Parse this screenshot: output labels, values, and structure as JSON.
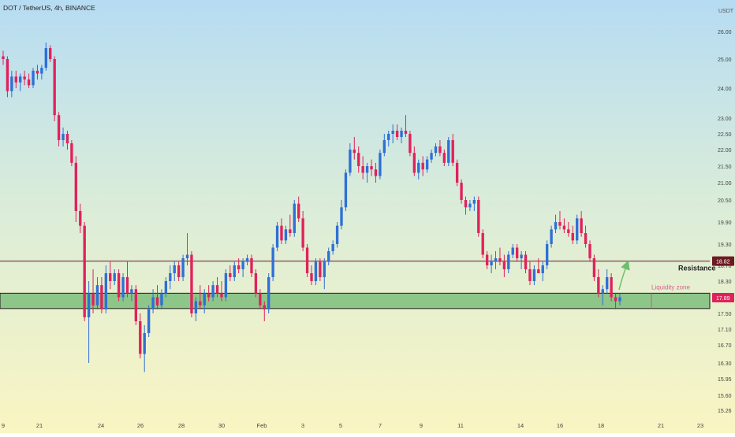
{
  "header": {
    "symbol_line": "DOT / TetherUS, 4h, BINANCE"
  },
  "chart_data": {
    "type": "candlestick",
    "title": "DOT / TetherUS, 4h, BINANCE",
    "y_unit": "USDT",
    "y_ticks": [
      "26.00",
      "25.00",
      "24.00",
      "23.00",
      "22.50",
      "22.00",
      "21.50",
      "21.00",
      "20.50",
      "19.90",
      "19.30",
      "18.70",
      "18.30",
      "17.89",
      "17.50",
      "17.10",
      "16.70",
      "16.30",
      "15.95",
      "15.60",
      "15.26"
    ],
    "x_ticks": [
      "9",
      "21",
      "24",
      "26",
      "28",
      "30",
      "Feb",
      "3",
      "5",
      "7",
      "9",
      "11",
      "14",
      "16",
      "18",
      "21",
      "23"
    ],
    "price_labels": {
      "resistance": "18.82",
      "current": "17.89"
    },
    "annotations": {
      "resistance": "Resistance",
      "liquidity": "Liquidity zone"
    },
    "levels": {
      "resistance": 18.82,
      "zone_top": 18.0,
      "zone_bottom": 17.62
    },
    "candles_ohlc": [
      [
        25.1,
        25.3,
        24.8,
        25.0
      ],
      [
        25.0,
        25.1,
        23.7,
        23.9
      ],
      [
        23.9,
        24.6,
        23.7,
        24.4
      ],
      [
        24.4,
        24.6,
        24.0,
        24.2
      ],
      [
        24.2,
        24.5,
        23.9,
        24.4
      ],
      [
        24.4,
        24.6,
        24.1,
        24.3
      ],
      [
        24.3,
        24.5,
        24.0,
        24.1
      ],
      [
        24.1,
        24.7,
        24.0,
        24.6
      ],
      [
        24.6,
        24.8,
        24.3,
        24.5
      ],
      [
        24.5,
        24.8,
        24.3,
        24.7
      ],
      [
        24.7,
        25.6,
        24.6,
        25.4
      ],
      [
        25.4,
        25.5,
        24.9,
        25.0
      ],
      [
        25.0,
        25.1,
        22.9,
        23.1
      ],
      [
        23.1,
        23.2,
        22.1,
        22.3
      ],
      [
        22.3,
        22.7,
        22.1,
        22.5
      ],
      [
        22.5,
        22.6,
        22.0,
        22.2
      ],
      [
        22.2,
        22.3,
        21.5,
        21.6
      ],
      [
        21.6,
        21.8,
        19.9,
        20.2
      ],
      [
        20.2,
        20.4,
        19.6,
        19.8
      ],
      [
        19.8,
        19.9,
        17.3,
        17.4
      ],
      [
        17.4,
        18.3,
        16.3,
        18.0
      ],
      [
        18.0,
        18.6,
        17.5,
        17.7
      ],
      [
        17.7,
        18.4,
        17.6,
        18.2
      ],
      [
        18.2,
        18.4,
        17.5,
        17.6
      ],
      [
        17.6,
        18.7,
        17.5,
        18.5
      ],
      [
        18.5,
        18.8,
        18.1,
        18.3
      ],
      [
        18.3,
        18.6,
        18.2,
        18.5
      ],
      [
        18.5,
        18.6,
        17.8,
        17.9
      ],
      [
        17.9,
        18.5,
        17.8,
        18.4
      ],
      [
        18.4,
        18.8,
        17.9,
        18.0
      ],
      [
        18.0,
        18.2,
        17.8,
        18.1
      ],
      [
        18.1,
        18.2,
        17.2,
        17.3
      ],
      [
        17.3,
        17.5,
        16.4,
        16.5
      ],
      [
        16.5,
        17.2,
        16.1,
        17.0
      ],
      [
        17.0,
        17.7,
        16.9,
        17.6
      ],
      [
        17.6,
        18.1,
        17.5,
        17.9
      ],
      [
        17.9,
        18.2,
        17.6,
        17.7
      ],
      [
        17.7,
        18.1,
        17.6,
        18.0
      ],
      [
        18.0,
        18.4,
        17.9,
        18.3
      ],
      [
        18.3,
        18.7,
        18.1,
        18.5
      ],
      [
        18.5,
        18.8,
        18.3,
        18.7
      ],
      [
        18.7,
        18.8,
        18.3,
        18.4
      ],
      [
        18.4,
        19.0,
        18.3,
        18.9
      ],
      [
        18.9,
        19.6,
        18.7,
        19.0
      ],
      [
        19.0,
        19.1,
        17.4,
        17.5
      ],
      [
        17.5,
        17.9,
        17.3,
        17.8
      ],
      [
        17.8,
        18.2,
        17.6,
        17.7
      ],
      [
        17.7,
        18.1,
        17.5,
        18.0
      ],
      [
        18.0,
        18.2,
        17.8,
        17.9
      ],
      [
        17.9,
        18.3,
        17.8,
        18.2
      ],
      [
        18.2,
        18.4,
        17.9,
        18.0
      ],
      [
        18.0,
        18.3,
        17.8,
        17.9
      ],
      [
        17.9,
        18.6,
        17.8,
        18.5
      ],
      [
        18.5,
        18.7,
        18.3,
        18.4
      ],
      [
        18.4,
        18.8,
        18.3,
        18.7
      ],
      [
        18.7,
        18.9,
        18.5,
        18.6
      ],
      [
        18.6,
        18.9,
        18.4,
        18.8
      ],
      [
        18.8,
        19.0,
        18.7,
        18.9
      ],
      [
        18.9,
        19.0,
        18.4,
        18.5
      ],
      [
        18.5,
        18.6,
        17.9,
        18.0
      ],
      [
        18.0,
        18.1,
        17.6,
        17.7
      ],
      [
        17.7,
        17.8,
        17.3,
        17.6
      ],
      [
        17.6,
        18.5,
        17.5,
        18.4
      ],
      [
        18.4,
        19.3,
        18.3,
        19.2
      ],
      [
        19.2,
        19.9,
        19.1,
        19.8
      ],
      [
        19.8,
        20.0,
        19.3,
        19.4
      ],
      [
        19.4,
        19.8,
        19.3,
        19.7
      ],
      [
        19.7,
        20.1,
        19.5,
        19.6
      ],
      [
        19.6,
        20.5,
        19.5,
        20.4
      ],
      [
        20.4,
        20.6,
        19.9,
        20.0
      ],
      [
        20.0,
        20.2,
        19.1,
        19.2
      ],
      [
        19.2,
        19.3,
        18.4,
        18.5
      ],
      [
        18.5,
        18.7,
        18.2,
        18.3
      ],
      [
        18.3,
        18.9,
        18.2,
        18.8
      ],
      [
        18.8,
        18.9,
        18.3,
        18.4
      ],
      [
        18.4,
        18.9,
        18.1,
        18.8
      ],
      [
        18.8,
        19.2,
        18.7,
        19.1
      ],
      [
        19.1,
        19.4,
        19.0,
        19.3
      ],
      [
        19.3,
        19.9,
        19.2,
        19.8
      ],
      [
        19.8,
        20.5,
        19.7,
        20.3
      ],
      [
        20.3,
        21.4,
        20.2,
        21.3
      ],
      [
        21.3,
        22.2,
        21.2,
        22.0
      ],
      [
        22.0,
        22.4,
        21.7,
        21.9
      ],
      [
        21.9,
        22.1,
        21.3,
        21.5
      ],
      [
        21.5,
        21.8,
        21.1,
        21.3
      ],
      [
        21.3,
        21.6,
        21.0,
        21.5
      ],
      [
        21.5,
        21.7,
        21.2,
        21.4
      ],
      [
        21.4,
        21.6,
        21.0,
        21.2
      ],
      [
        21.2,
        22.0,
        21.1,
        21.9
      ],
      [
        21.9,
        22.5,
        21.8,
        22.3
      ],
      [
        22.3,
        22.6,
        22.1,
        22.5
      ],
      [
        22.5,
        22.8,
        22.2,
        22.6
      ],
      [
        22.6,
        22.8,
        22.3,
        22.4
      ],
      [
        22.4,
        22.7,
        22.2,
        22.6
      ],
      [
        22.6,
        23.1,
        22.4,
        22.5
      ],
      [
        22.5,
        22.6,
        21.8,
        21.9
      ],
      [
        21.9,
        22.1,
        21.2,
        21.3
      ],
      [
        21.3,
        21.7,
        21.1,
        21.6
      ],
      [
        21.6,
        21.8,
        21.2,
        21.4
      ],
      [
        21.4,
        21.8,
        21.3,
        21.7
      ],
      [
        21.7,
        22.0,
        21.6,
        21.9
      ],
      [
        21.9,
        22.2,
        21.8,
        22.1
      ],
      [
        22.1,
        22.3,
        21.8,
        21.9
      ],
      [
        21.9,
        22.0,
        21.5,
        21.6
      ],
      [
        21.6,
        22.4,
        21.5,
        22.3
      ],
      [
        22.3,
        22.5,
        21.5,
        21.6
      ],
      [
        21.6,
        21.7,
        20.9,
        21.0
      ],
      [
        21.0,
        21.1,
        20.4,
        20.5
      ],
      [
        20.5,
        20.6,
        20.1,
        20.3
      ],
      [
        20.3,
        20.5,
        20.2,
        20.4
      ],
      [
        20.4,
        20.6,
        20.2,
        20.5
      ],
      [
        20.5,
        20.6,
        19.5,
        19.6
      ],
      [
        19.6,
        19.7,
        18.9,
        19.0
      ],
      [
        19.0,
        19.1,
        18.6,
        18.7
      ],
      [
        18.7,
        19.0,
        18.5,
        18.8
      ],
      [
        18.8,
        19.1,
        18.6,
        18.9
      ],
      [
        18.9,
        19.2,
        18.7,
        18.8
      ],
      [
        18.8,
        19.0,
        18.4,
        18.6
      ],
      [
        18.6,
        19.1,
        18.5,
        19.0
      ],
      [
        19.0,
        19.3,
        18.9,
        19.2
      ],
      [
        19.2,
        19.3,
        18.8,
        18.9
      ],
      [
        18.9,
        19.1,
        18.6,
        19.0
      ],
      [
        19.0,
        19.1,
        18.5,
        18.6
      ],
      [
        18.6,
        18.8,
        18.2,
        18.3
      ],
      [
        18.3,
        18.7,
        18.2,
        18.6
      ],
      [
        18.6,
        18.9,
        18.5,
        18.5
      ],
      [
        18.5,
        18.8,
        18.3,
        18.7
      ],
      [
        18.7,
        19.4,
        18.6,
        19.3
      ],
      [
        19.3,
        19.8,
        19.2,
        19.7
      ],
      [
        19.7,
        20.1,
        19.6,
        19.9
      ],
      [
        19.9,
        20.2,
        19.7,
        19.8
      ],
      [
        19.8,
        20.0,
        19.6,
        19.7
      ],
      [
        19.7,
        19.9,
        19.5,
        19.6
      ],
      [
        19.6,
        19.8,
        19.3,
        19.4
      ],
      [
        19.4,
        20.1,
        19.3,
        20.0
      ],
      [
        20.0,
        20.2,
        19.5,
        19.6
      ],
      [
        19.6,
        19.8,
        19.2,
        19.3
      ],
      [
        19.3,
        19.4,
        18.8,
        18.9
      ],
      [
        18.9,
        19.0,
        18.3,
        18.4
      ],
      [
        18.4,
        18.6,
        17.9,
        18.0
      ],
      [
        18.0,
        18.2,
        17.7,
        18.1
      ],
      [
        18.1,
        18.6,
        18.0,
        18.4
      ],
      [
        18.4,
        18.5,
        17.8,
        17.9
      ],
      [
        17.9,
        18.0,
        17.6,
        17.8
      ],
      [
        17.8,
        18.0,
        17.7,
        17.9
      ]
    ]
  }
}
